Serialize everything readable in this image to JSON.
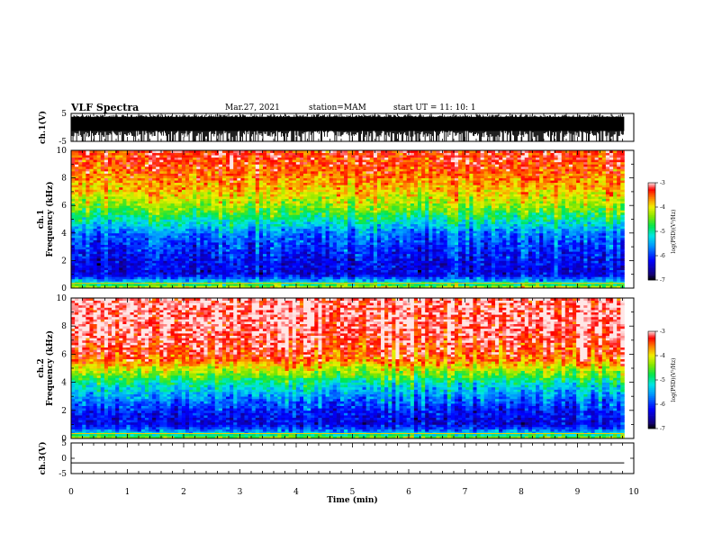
{
  "header": {
    "title": "VLF Spectra",
    "date": "Mar.27, 2021",
    "station": "station=MAM",
    "start_ut": "start  UT =   11: 10: 1"
  },
  "chart_data": [
    {
      "type": "line",
      "panel": "ch1-waveform",
      "ylabel": "ch.1(V)",
      "ylim": [
        -5,
        5
      ],
      "yticks": [
        "5",
        "-5"
      ],
      "xlim": [
        0,
        10
      ],
      "description_values": {
        "amplitude_range": [
          -5,
          5
        ],
        "dense_oscillation": true
      }
    },
    {
      "type": "heatmap",
      "panel": "ch1-spectrogram",
      "ylabel": "ch.1\nFrequency (kHz)",
      "ylabel_line1": "ch.1",
      "ylabel_line2": "Frequency (kHz)",
      "ylim": [
        0,
        10
      ],
      "yticks": [
        "0",
        "2",
        "4",
        "6",
        "8",
        "10"
      ],
      "xlim": [
        0,
        9.83
      ],
      "colorbar": {
        "label": "log(PSD)(V²/Hz)",
        "ticks": [
          "-3",
          "-4",
          "-5",
          "-6",
          "-7"
        ],
        "range": [
          -7,
          -3
        ]
      },
      "profile_freq_khz": [
        0,
        0.5,
        1,
        2,
        3,
        4,
        4.5,
        5,
        5.5,
        6,
        7,
        8,
        9,
        10
      ],
      "profile_log_psd": [
        -4.0,
        -5.4,
        -6.3,
        -6.2,
        -6.0,
        -5.7,
        -5.3,
        -5.0,
        -4.6,
        -4.3,
        -3.9,
        -3.6,
        -3.4,
        -3.3
      ]
    },
    {
      "type": "heatmap",
      "panel": "ch2-spectrogram",
      "ylabel_line1": "ch.2",
      "ylabel_line2": "Frequency (kHz)",
      "ylim": [
        0,
        10
      ],
      "yticks": [
        "0",
        "2",
        "4",
        "6",
        "8",
        "10"
      ],
      "xlim": [
        0,
        9.83
      ],
      "colorbar": {
        "label": "log(PSD)(V²/Hz)",
        "ticks": [
          "-3",
          "-4",
          "-5",
          "-6",
          "-7"
        ],
        "range": [
          -7,
          -3
        ]
      },
      "profile_freq_khz": [
        0,
        0.5,
        1,
        2,
        3,
        4,
        4.5,
        5,
        5.5,
        6,
        7,
        8,
        9,
        10
      ],
      "profile_log_psd": [
        -4.2,
        -5.6,
        -6.3,
        -6.1,
        -5.6,
        -5.0,
        -4.5,
        -4.1,
        -3.6,
        -3.4,
        -3.2,
        -3.1,
        -3.1,
        -3.1
      ]
    },
    {
      "type": "line",
      "panel": "ch3-waveform",
      "ylabel": "ch.3(V)",
      "ylim": [
        -5,
        5
      ],
      "yticks": [
        "5",
        "0",
        "-5"
      ],
      "xlim": [
        0,
        9.83
      ],
      "series": [
        {
          "x": [
            0,
            9.83
          ],
          "values": [
            -1.5,
            -1.5
          ]
        }
      ]
    }
  ],
  "xaxis": {
    "label": "Time (min)",
    "ticks": [
      "0",
      "1",
      "2",
      "3",
      "4",
      "5",
      "6",
      "7",
      "8",
      "9",
      "10"
    ],
    "range": [
      0,
      10
    ]
  }
}
